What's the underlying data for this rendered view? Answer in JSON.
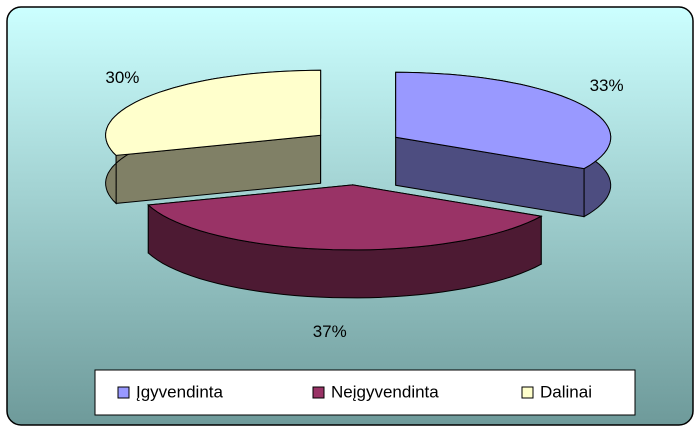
{
  "chart_data": {
    "type": "pie3d",
    "categories": [
      "Įgyvendinta",
      "Neįgyvendinta",
      "Dalinai"
    ],
    "values": [
      33,
      37,
      30
    ],
    "value_labels": [
      "33%",
      "37%",
      "30%"
    ],
    "colors": [
      "#9999ff",
      "#993366",
      "#ffffcc"
    ]
  }
}
